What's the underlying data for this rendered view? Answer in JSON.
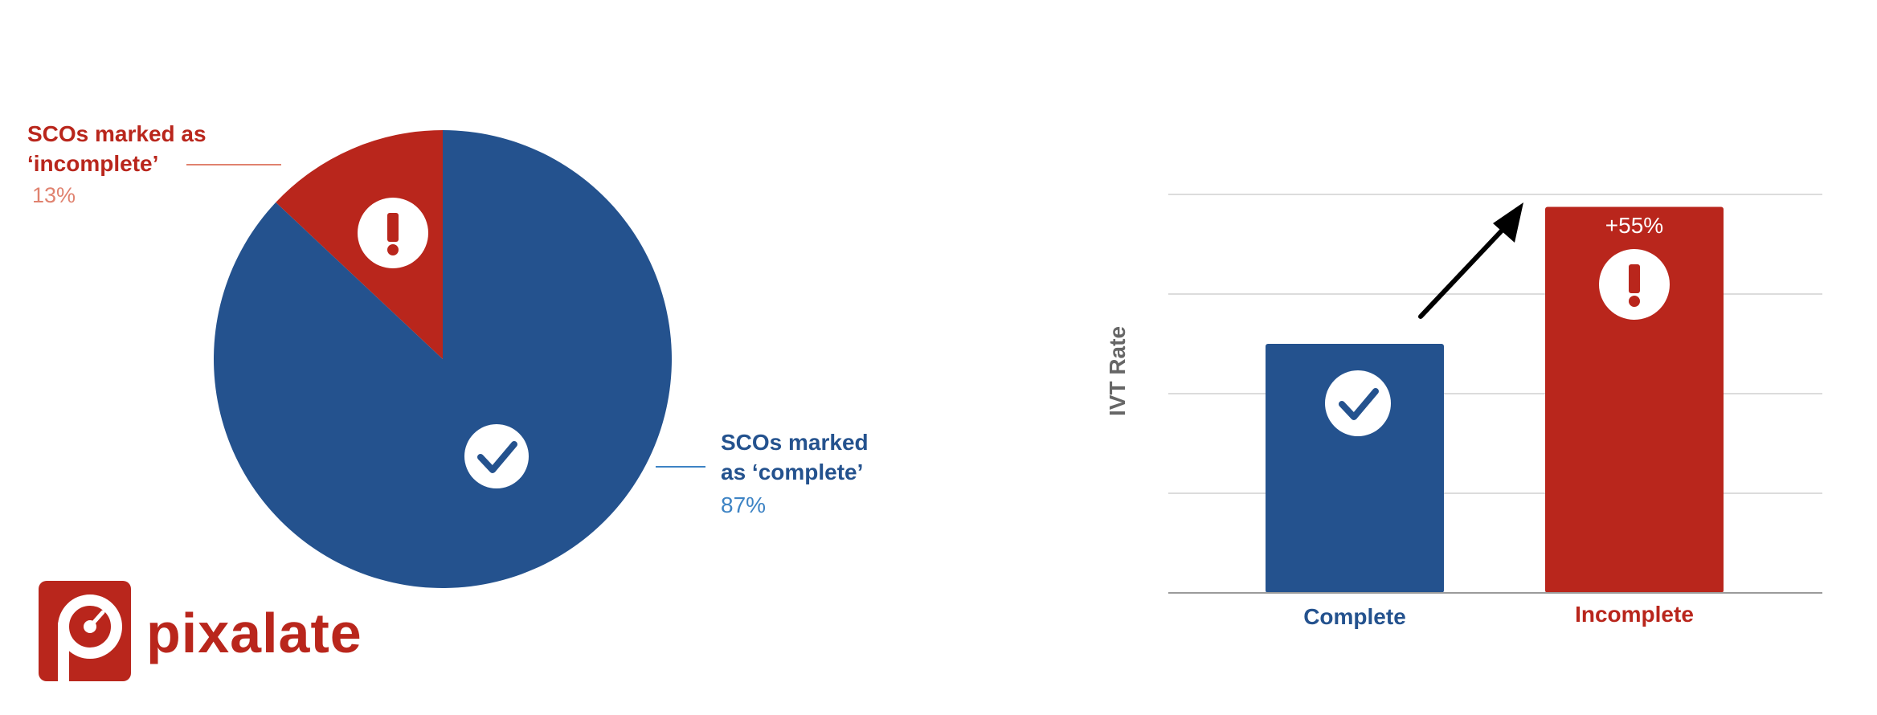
{
  "colors": {
    "complete": "#24528E",
    "incomplete": "#B9261C",
    "complete_pct": "#3D83C4",
    "incomplete_pct": "#E0826F",
    "grid": "#DCDCDC",
    "axis": "#9B9B9B",
    "arrow": "#000000",
    "ylabel": "#666666"
  },
  "chart_data": [
    {
      "type": "pie",
      "title": "",
      "slices": [
        {
          "label_line1": "SCOs marked as",
          "label_line2": "‘incomplete’",
          "percent_label": "13%",
          "value": 13,
          "icon": "exclamation-icon"
        },
        {
          "label_line1": "SCOs marked",
          "label_line2": "as ‘complete’",
          "percent_label": "87%",
          "value": 87,
          "icon": "checkmark-icon"
        }
      ]
    },
    {
      "type": "bar",
      "title": "",
      "categories": [
        "Complete",
        "Incomplete"
      ],
      "values": [
        1,
        1.55
      ],
      "ylabel": "IVT Rate",
      "xlabel": "",
      "ylim": [
        0,
        1.6
      ],
      "grid": true,
      "annotations": [
        {
          "category": "Incomplete",
          "text": "+55%"
        }
      ],
      "icons": [
        "checkmark-icon",
        "exclamation-icon"
      ]
    }
  ],
  "logo": {
    "text": "pixalate",
    "icon": "pixalate-logo-icon"
  }
}
